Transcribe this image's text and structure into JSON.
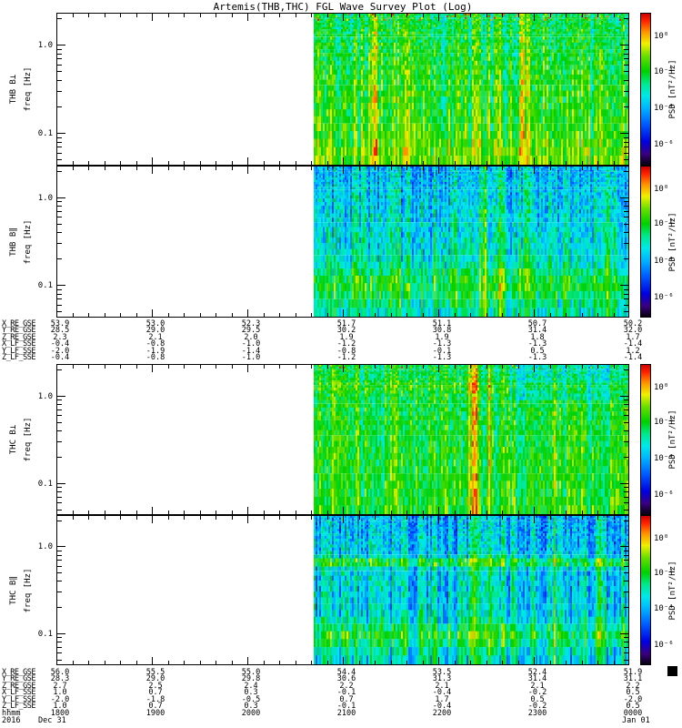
{
  "title": "Artemis(THB,THC) FGL Wave Survey Plot (Log)",
  "colors": {
    "background": "#ffffff",
    "frame": "#000000",
    "no_data": "#ffffff"
  },
  "chart_data": {
    "type": "heatmap",
    "title": "Artemis(THB,THC) FGL Wave Survey Plot (Log)",
    "x_axis": {
      "label": "hhmm",
      "tick_labels": [
        "1800",
        "1900",
        "2000",
        "2100",
        "2200",
        "2300",
        "0000"
      ],
      "minor_ticks_per_hour": 6,
      "start_date_label": "Dec 31",
      "end_date_label": "Jan 01",
      "year_label": "2016",
      "range_hours": 6
    },
    "y_axis": {
      "label": "freq [Hz]",
      "scale": "log",
      "tick_labels": [
        "1.0",
        "0.1"
      ],
      "range_hz": [
        0.045,
        2.3
      ]
    },
    "colorbar": {
      "label": "PSD [nT²/Hz]",
      "tick_labels": [
        "10⁰",
        "10⁻²",
        "10⁻⁴",
        "10⁻⁶"
      ],
      "tick_fractions_from_top": [
        0.15,
        0.38,
        0.62,
        0.86
      ],
      "colormap_stops": [
        [
          0.0,
          "#000000"
        ],
        [
          0.08,
          "#3a0080"
        ],
        [
          0.16,
          "#0000e0"
        ],
        [
          0.28,
          "#0060ff"
        ],
        [
          0.38,
          "#00b4ff"
        ],
        [
          0.46,
          "#00e8e8"
        ],
        [
          0.54,
          "#00e88c"
        ],
        [
          0.62,
          "#00d000"
        ],
        [
          0.72,
          "#6ade00"
        ],
        [
          0.8,
          "#f0f000"
        ],
        [
          0.88,
          "#ff9000"
        ],
        [
          0.95,
          "#ff2000"
        ],
        [
          1.0,
          "#c80000"
        ]
      ]
    },
    "data_coverage": "spectrogram data present only from ~2042 UT to 0000 UT (left ~45% of each panel is blank)",
    "panels": [
      {
        "id": "thb-bperp",
        "label": "THB B⊥",
        "ylabel": "freq [Hz]",
        "summary": "mostly green/cyan broadband power, scattered blue minima, yellow enhancements near 2115, 2140 and 2250 UT, red specks at highest frequencies",
        "render": {
          "seed": 11,
          "base": 0.57,
          "freq_gain": 0.09,
          "col_noise": 0.11,
          "cell_noise": 0.1,
          "bands": [
            {
              "t": 0.555,
              "w": 0.008,
              "a": 0.12
            },
            {
              "t": 0.605,
              "w": 0.006,
              "a": 0.1
            },
            {
              "t": 0.7,
              "w": 0.005,
              "a": 0.08
            },
            {
              "t": 0.815,
              "w": 0.01,
              "a": 0.13
            },
            {
              "t": 0.96,
              "w": 0.005,
              "a": 0.08
            }
          ],
          "hbands": [
            {
              "f": 0.97,
              "w": 0.05,
              "a": 0.05
            }
          ],
          "hot": {
            "fmax": 0.1,
            "prob": 0.05,
            "amp": 0.33
          }
        }
      },
      {
        "id": "thb-bpar",
        "label": "THB B∥",
        "ylabel": "freq [Hz]",
        "summary": "weaker blue/cyan power, green vertical streaks near 2215-2240 UT, enhanced green band at lowest frequencies",
        "render": {
          "seed": 22,
          "base": 0.4,
          "freq_gain": 0.11,
          "col_noise": 0.13,
          "cell_noise": 0.1,
          "bands": [
            {
              "t": 0.715,
              "w": 0.006,
              "a": 0.15
            },
            {
              "t": 0.748,
              "w": 0.008,
              "a": 0.18
            },
            {
              "t": 0.778,
              "w": 0.005,
              "a": 0.12
            },
            {
              "t": 0.92,
              "w": 0.004,
              "a": 0.07
            }
          ],
          "hbands": [
            {
              "f": 0.9,
              "w": 0.07,
              "a": 0.13
            }
          ],
          "hot": null
        }
      },
      {
        "id": "thc-bperp",
        "label": "THC B⊥",
        "ylabel": "freq [Hz]",
        "summary": "green broadband power, strong yellow/orange vertical band near 2220-2240 UT, weaker yellow streaks near 2320 UT, bluer columns at upper frequencies late in interval",
        "render": {
          "seed": 33,
          "base": 0.58,
          "freq_gain": 0.05,
          "col_noise": 0.1,
          "cell_noise": 0.09,
          "bands": [
            {
              "t": 0.5,
              "w": 0.005,
              "a": 0.08
            },
            {
              "t": 0.73,
              "w": 0.01,
              "a": 0.22
            },
            {
              "t": 0.757,
              "w": 0.006,
              "a": 0.13
            },
            {
              "t": 0.87,
              "w": 0.006,
              "a": 0.11
            },
            {
              "t": 0.915,
              "w": 0.005,
              "a": 0.1
            }
          ],
          "hbands": [
            {
              "f": 0.3,
              "w": 0.06,
              "a": 0.06
            }
          ],
          "cool": {
            "t0": 0.79,
            "fmax": 0.45,
            "a": -0.09
          },
          "hot": {
            "fmax": 0.06,
            "prob": 0.03,
            "amp": 0.3
          }
        }
      },
      {
        "id": "thc-bpar",
        "label": "THC B∥",
        "ylabel": "freq [Hz]",
        "summary": "blue/cyan power with strong yellow vertical band near 2220 UT, bright green horizontal stripe at mid-low frequency and cyan-green band near bottom",
        "render": {
          "seed": 44,
          "base": 0.38,
          "freq_gain": 0.08,
          "col_noise": 0.13,
          "cell_noise": 0.1,
          "bands": [
            {
              "t": 0.73,
              "w": 0.008,
              "a": 0.26
            },
            {
              "t": 0.757,
              "w": 0.005,
              "a": 0.15
            },
            {
              "t": 0.87,
              "w": 0.005,
              "a": 0.1
            },
            {
              "t": 0.95,
              "w": 0.004,
              "a": 0.09
            }
          ],
          "hbands": [
            {
              "f": 0.53,
              "w": 0.035,
              "a": 0.22
            },
            {
              "f": 0.91,
              "w": 0.05,
              "a": 0.15
            }
          ],
          "hot": null
        }
      }
    ],
    "ephemeris_thb": {
      "rows": [
        {
          "label": "X_RE_GSE",
          "values": [
            "53.9",
            "53.0",
            "52.3",
            "51.7",
            "51.1",
            "50.7",
            "50.2"
          ]
        },
        {
          "label": "Y_RE_GSE",
          "values": [
            "28.5",
            "29.0",
            "29.5",
            "30.2",
            "30.8",
            "31.4",
            "32.0"
          ]
        },
        {
          "label": "Z_RE_GSE",
          "values": [
            "2.3",
            "2.1",
            "2.0",
            "1.9",
            "1.9",
            "1.8",
            "1.7"
          ]
        },
        {
          "label": "X_LF_SSE",
          "values": [
            "-0.4",
            "-0.8",
            "-1.0",
            "-1.2",
            "-1.3",
            "-1.3",
            "-1.4"
          ]
        },
        {
          "label": "Y_LF_SSE",
          "values": [
            "-2.0",
            "-1.9",
            "-1.4",
            "-0.8",
            "-0.1",
            "0.5",
            "1.2"
          ]
        },
        {
          "label": "Z_LF_SSE",
          "values": [
            "-0.4",
            "-0.8",
            "-1.0",
            "-1.2",
            "-1.3",
            "-1.3",
            "-1.4"
          ]
        }
      ]
    },
    "ephemeris_thc": {
      "rows": [
        {
          "label": "X_RE_GSE",
          "values": [
            "56.0",
            "55.5",
            "55.0",
            "54.4",
            "53.5",
            "52.4",
            "51.9"
          ]
        },
        {
          "label": "Y_RE_GSE",
          "values": [
            "28.3",
            "29.0",
            "29.8",
            "30.6",
            "31.3",
            "31.4",
            "31.1"
          ]
        },
        {
          "label": "Z_RE_GSE",
          "values": [
            "2.7",
            "2.5",
            "2.4",
            "2.2",
            "2.1",
            "2.1",
            "2.2"
          ]
        },
        {
          "label": "X_LF_SSE",
          "values": [
            "1.0",
            "0.7",
            "0.3",
            "-0.1",
            "-0.4",
            "-0.2",
            "0.5"
          ]
        },
        {
          "label": "Y_LF_SSE",
          "values": [
            "-2.0",
            "-1.8",
            "-0.5",
            "0.7",
            "1.7",
            "0.5",
            "-2.0"
          ]
        },
        {
          "label": "Z_LF_SSE",
          "values": [
            "1.0",
            "0.7",
            "0.3",
            "-0.1",
            "-0.4",
            "-0.2",
            "0.5"
          ]
        }
      ]
    }
  }
}
